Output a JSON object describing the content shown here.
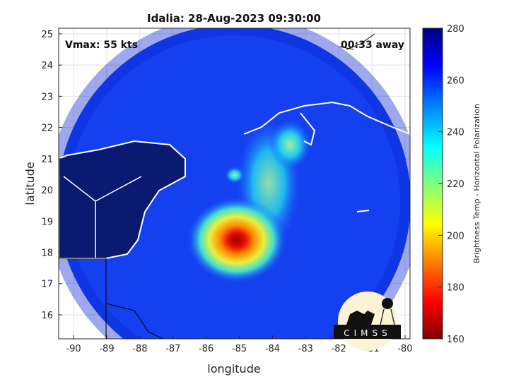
{
  "title": "Idalia: 28-Aug-2023 09:30:00",
  "vmax_label": "Vmax: 55 kts",
  "time_away": "00:33 away",
  "xaxis": {
    "label": "longitude",
    "ticks": [
      "-90",
      "-89",
      "-88",
      "-87",
      "-86",
      "-85",
      "-84",
      "-83",
      "-82",
      "-81",
      "-80"
    ],
    "values": [
      -90,
      -89,
      -88,
      -87,
      -86,
      -85,
      -84,
      -83,
      -82,
      -81,
      -80
    ],
    "range": [
      -90.45,
      -79.85
    ]
  },
  "yaxis": {
    "label": "latitude",
    "ticks": [
      "25",
      "24",
      "23",
      "22",
      "21",
      "20",
      "19",
      "18",
      "17",
      "16"
    ],
    "values": [
      25,
      24,
      23,
      22,
      21,
      20,
      19,
      18,
      17,
      16
    ],
    "range": [
      15.23,
      25.18
    ]
  },
  "colorbar": {
    "label": "Brightness Temp - Horizontal Polarization",
    "ticks": [
      "280",
      "260",
      "240",
      "220",
      "200",
      "180",
      "160"
    ],
    "values": [
      280,
      260,
      240,
      220,
      200,
      180,
      160
    ],
    "range": [
      160,
      280
    ]
  },
  "logo": {
    "text": "CIMSS"
  },
  "storm_center": {
    "lon": -85.3,
    "lat": 18.4,
    "min_temp": 165
  }
}
